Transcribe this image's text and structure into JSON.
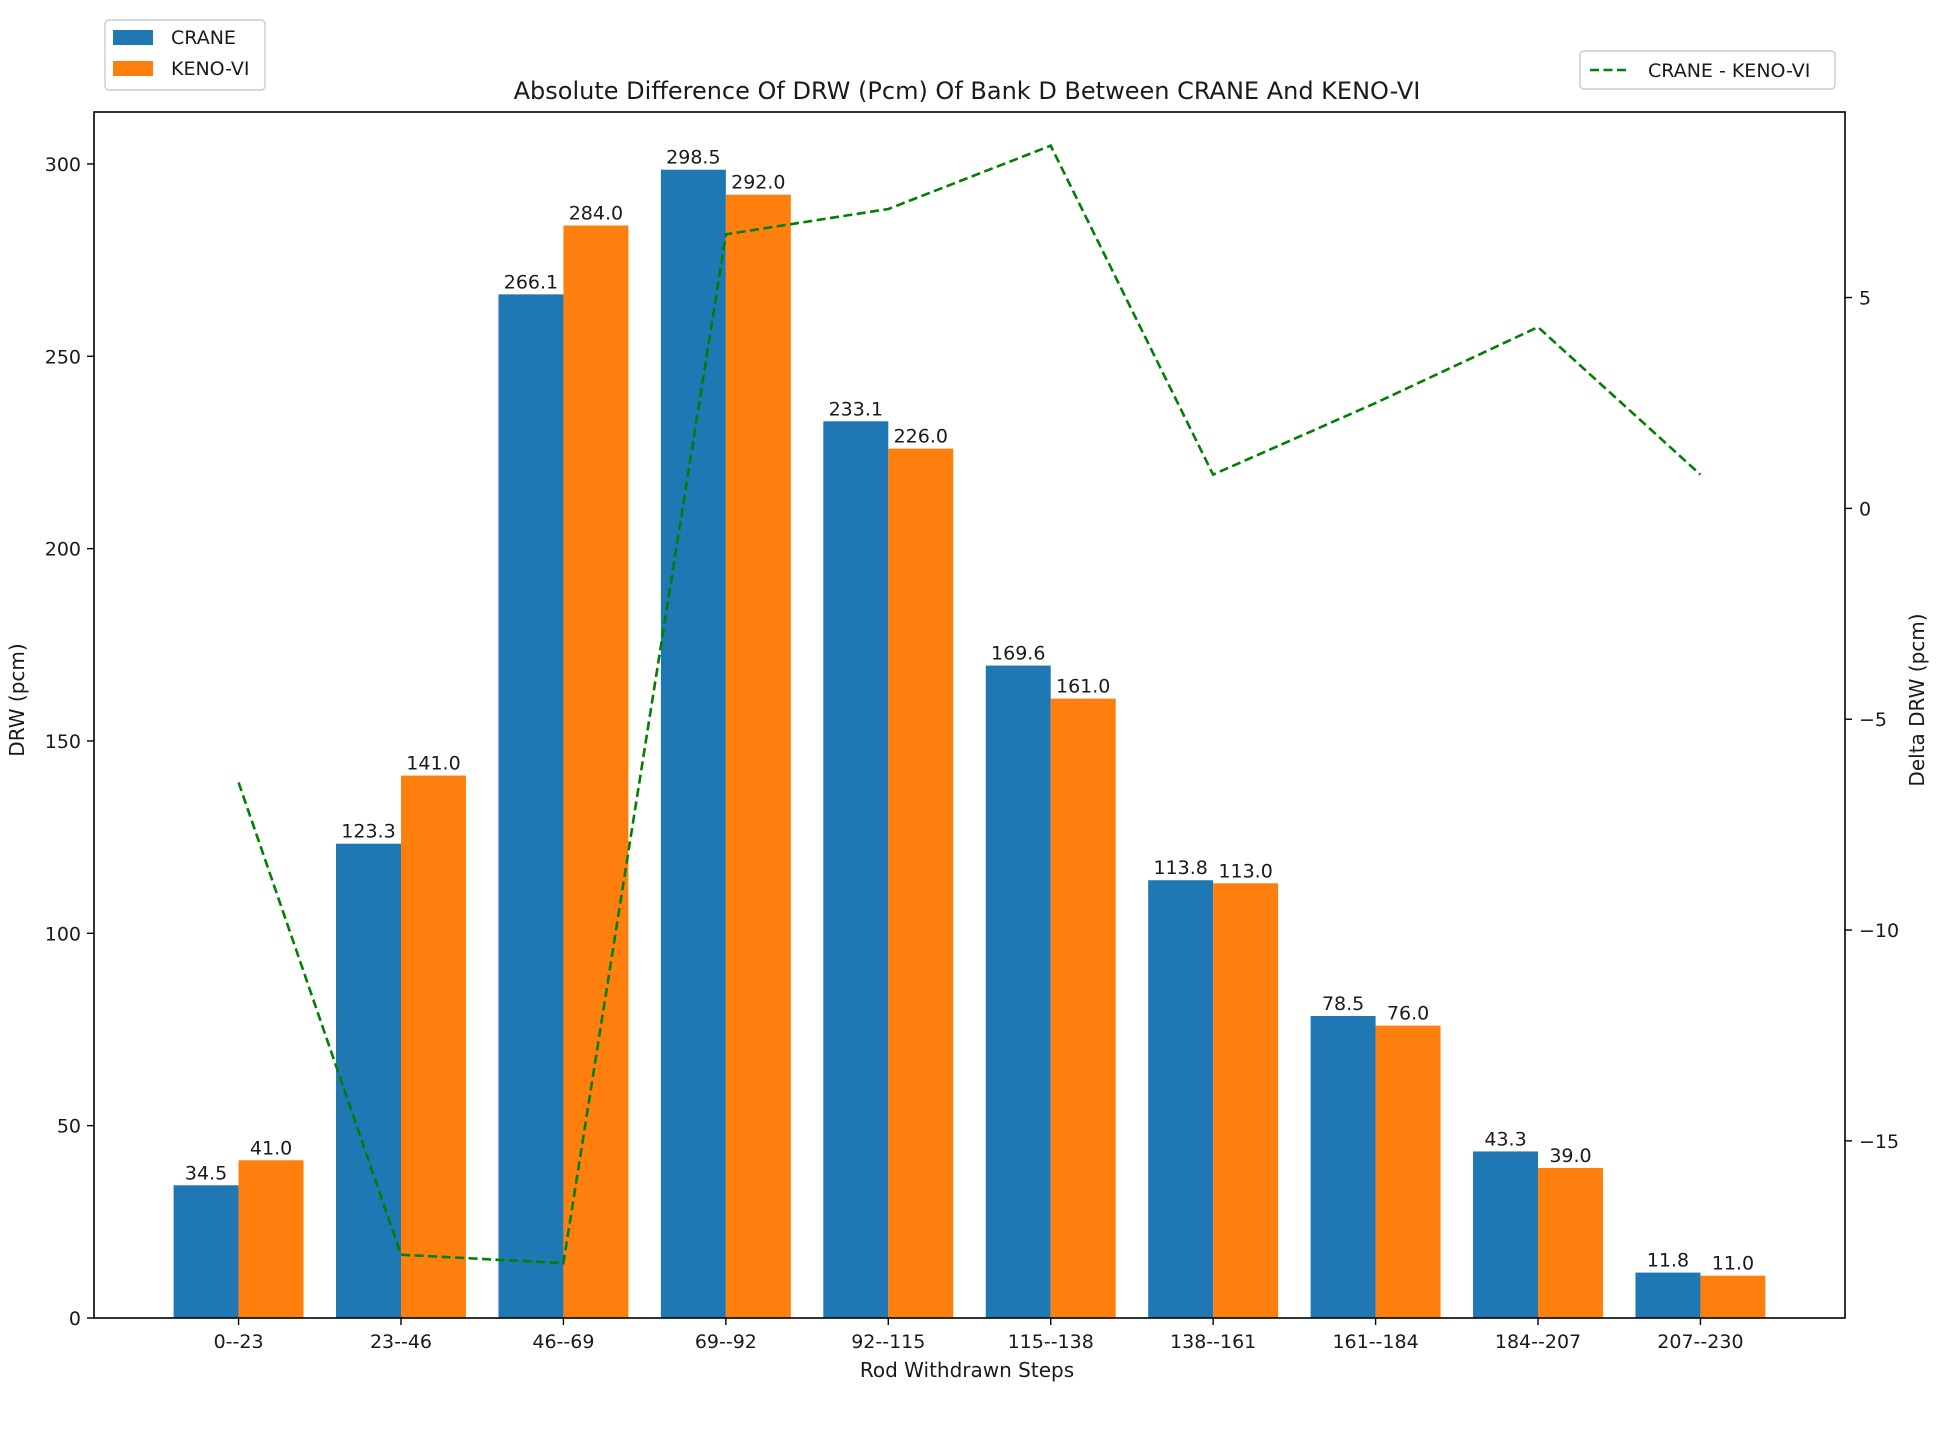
{
  "chart_data": {
    "type": "bar",
    "title": "Absolute Difference Of DRW (Pcm) Of Bank D Between CRANE And KENO-VI",
    "xlabel": "Rod Withdrawn Steps",
    "ylabel": "DRW (pcm)",
    "y2label": "Delta DRW (pcm)",
    "categories": [
      "0--23",
      "23--46",
      "46--69",
      "69--92",
      "92--115",
      "115--138",
      "138--161",
      "161--184",
      "184--207",
      "207--230"
    ],
    "series": [
      {
        "name": "CRANE",
        "color": "#1f77b4",
        "values": [
          34.5,
          123.3,
          266.1,
          298.5,
          233.1,
          169.6,
          113.8,
          78.5,
          43.3,
          11.8
        ],
        "labels": [
          "34.5",
          "123.3",
          "266.1",
          "298.5",
          "233.1",
          "169.6",
          "113.8",
          "78.5",
          "43.3",
          "11.8"
        ]
      },
      {
        "name": "KENO-VI",
        "color": "#ff7f0e",
        "values": [
          41.0,
          141.0,
          284.0,
          292.0,
          226.0,
          161.0,
          113.0,
          76.0,
          39.0,
          11.0
        ],
        "labels": [
          "41.0",
          "141.0",
          "284.0",
          "292.0",
          "226.0",
          "161.0",
          "113.0",
          "76.0",
          "39.0",
          "11.0"
        ]
      }
    ],
    "line_series": {
      "name": "CRANE - KENO-VI",
      "color": "#008000",
      "style": "dashed",
      "axis": "right",
      "values": [
        -6.5,
        -17.7,
        -17.9,
        6.5,
        7.1,
        8.6,
        0.8,
        2.5,
        4.3,
        0.8
      ]
    },
    "ylim": [
      0,
      313.5
    ],
    "y2lim": [
      -19.2,
      9.4
    ],
    "yticks": [
      0,
      50,
      100,
      150,
      200,
      250,
      300
    ],
    "y2ticks": [
      -15,
      -10,
      -5,
      0,
      5
    ],
    "grid": false,
    "legend_placement": "upper-left",
    "legend2_placement": "upper-right"
  }
}
